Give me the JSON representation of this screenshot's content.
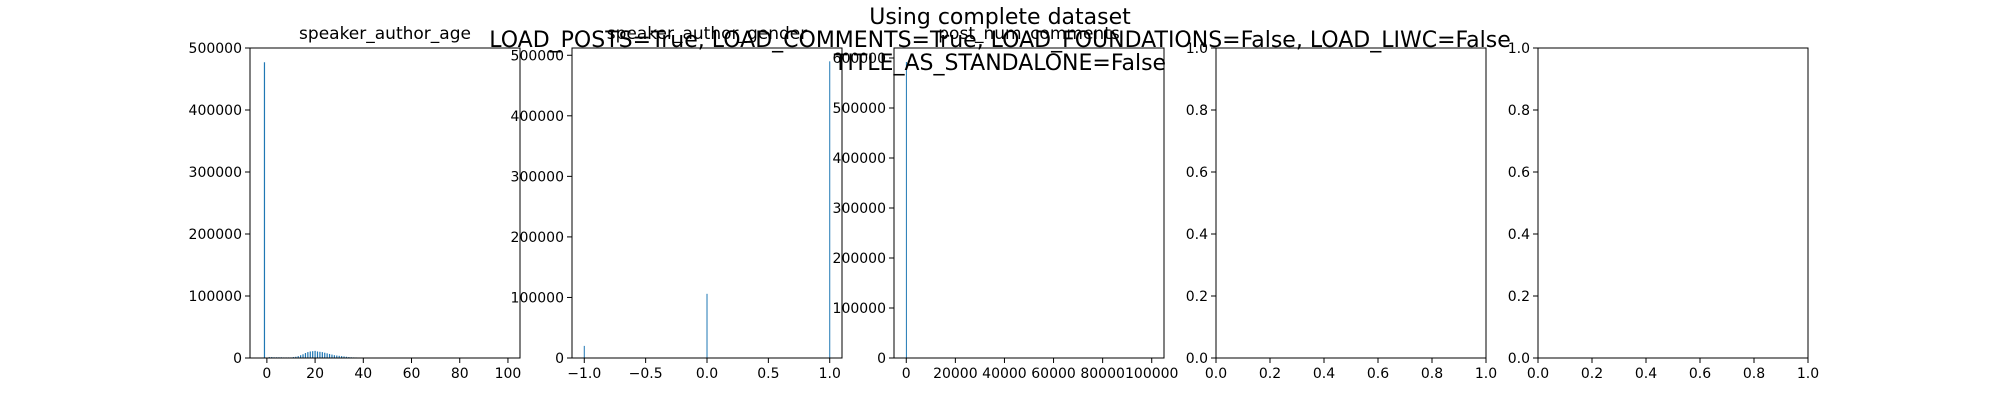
{
  "suptitle_lines": [
    "Using complete dataset",
    "LOAD_POSTS=True, LOAD_COMMENTS=True, LOAD_FOUNDATIONS=False, LOAD_LIWC=False",
    "TITLE_AS_STANDALONE=False"
  ],
  "chart_data": [
    {
      "type": "bar",
      "title": "speaker_author_age",
      "xlim": [
        -7,
        105
      ],
      "ylim": [
        0,
        500000
      ],
      "xticks": [
        0,
        20,
        40,
        60,
        80,
        100
      ],
      "xtick_labels": [
        "0",
        "20",
        "40",
        "60",
        "80",
        "100"
      ],
      "yticks": [
        0,
        100000,
        200000,
        300000,
        400000,
        500000
      ],
      "ytick_labels": [
        "0",
        "100000",
        "200000",
        "300000",
        "400000",
        "500000"
      ],
      "bin_width": 0.5,
      "x": [
        -1,
        1,
        2,
        3,
        4,
        5,
        6,
        7,
        8,
        9,
        10,
        11,
        12,
        13,
        14,
        15,
        16,
        17,
        18,
        19,
        20,
        21,
        22,
        23,
        24,
        25,
        26,
        27,
        28,
        29,
        30,
        31,
        32,
        33,
        34,
        35,
        36,
        37,
        38,
        39,
        40,
        42,
        44,
        46,
        48,
        50,
        55,
        60,
        65,
        70
      ],
      "values": [
        477000,
        1500,
        1500,
        1200,
        1200,
        1200,
        1200,
        1000,
        1000,
        1000,
        1000,
        1500,
        2000,
        3000,
        4500,
        6000,
        8000,
        9500,
        10500,
        11000,
        11500,
        10500,
        10000,
        9500,
        8500,
        7500,
        6500,
        5500,
        4500,
        4000,
        3500,
        3000,
        2500,
        2000,
        1500,
        1200,
        1000,
        900,
        800,
        700,
        600,
        500,
        400,
        300,
        250,
        200,
        150,
        100,
        80,
        50
      ]
    },
    {
      "type": "bar",
      "title": "speaker_author_gender",
      "xlim": [
        -1.1,
        1.1
      ],
      "ylim": [
        0,
        512000
      ],
      "xticks": [
        -1.0,
        -0.5,
        0.0,
        0.5,
        1.0
      ],
      "xtick_labels": [
        "−1.0",
        "−0.5",
        "0.0",
        "0.5",
        "1.0"
      ],
      "yticks": [
        0,
        100000,
        200000,
        300000,
        400000,
        500000
      ],
      "ytick_labels": [
        "0",
        "100000",
        "200000",
        "300000",
        "400000",
        "500000"
      ],
      "bin_width": 0.008,
      "x": [
        -1.0,
        0.0,
        1.0
      ],
      "values": [
        20000,
        106000,
        490000
      ]
    },
    {
      "type": "bar",
      "title": "post_num_comments",
      "xlim": [
        -5000,
        105000
      ],
      "ylim": [
        0,
        620000
      ],
      "xticks": [
        0,
        20000,
        40000,
        60000,
        80000,
        100000
      ],
      "xtick_labels": [
        "0",
        "20000",
        "40000",
        "60000",
        "80000",
        "100000"
      ],
      "yticks": [
        0,
        100000,
        200000,
        300000,
        400000,
        500000,
        600000
      ],
      "ytick_labels": [
        "0",
        "100000",
        "200000",
        "300000",
        "400000",
        "500000",
        "600000"
      ],
      "bin_width": 300,
      "x": [
        0
      ],
      "values": [
        592000
      ]
    },
    {
      "type": "bar",
      "title": "",
      "xlim": [
        0,
        1
      ],
      "ylim": [
        0,
        1
      ],
      "xticks": [
        0,
        0.2,
        0.4,
        0.6,
        0.8,
        1.0
      ],
      "xtick_labels": [
        "0.0",
        "0.2",
        "0.4",
        "0.6",
        "0.8",
        "1.0"
      ],
      "yticks": [
        0,
        0.2,
        0.4,
        0.6,
        0.8,
        1.0
      ],
      "ytick_labels": [
        "0.0",
        "0.2",
        "0.4",
        "0.6",
        "0.8",
        "1.0"
      ],
      "bin_width": 0,
      "x": [],
      "values": []
    },
    {
      "type": "bar",
      "title": "",
      "xlim": [
        0,
        1
      ],
      "ylim": [
        0,
        1
      ],
      "xticks": [
        0,
        0.2,
        0.4,
        0.6,
        0.8,
        1.0
      ],
      "xtick_labels": [
        "0.0",
        "0.2",
        "0.4",
        "0.6",
        "0.8",
        "1.0"
      ],
      "yticks": [
        0,
        0.2,
        0.4,
        0.6,
        0.8,
        1.0
      ],
      "ytick_labels": [
        "0.0",
        "0.2",
        "0.4",
        "0.6",
        "0.8",
        "1.0"
      ],
      "bin_width": 0,
      "x": [],
      "values": []
    }
  ],
  "colors": {
    "bar": "#1f77b4",
    "axis": "#000000",
    "background": "#ffffff"
  }
}
